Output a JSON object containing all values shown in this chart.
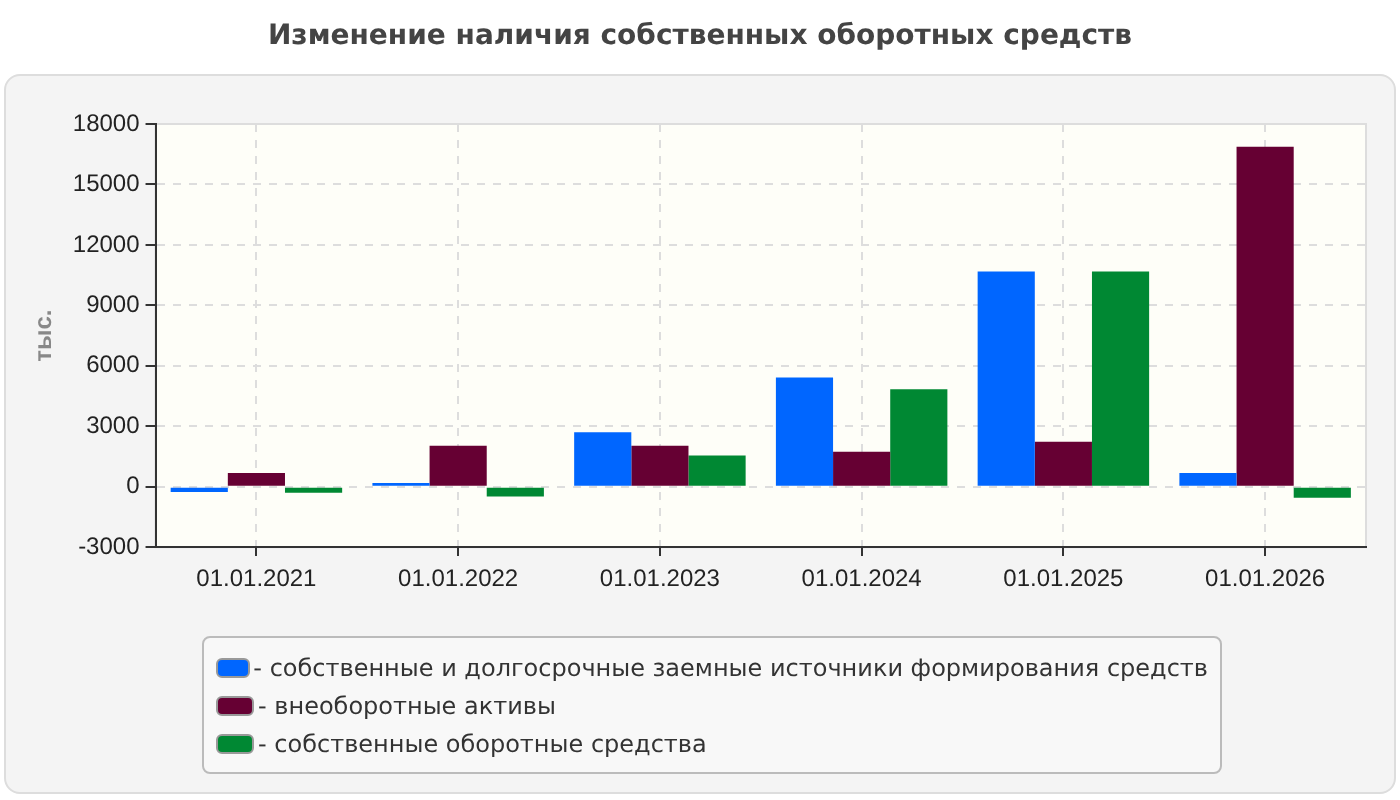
{
  "chart_data": {
    "type": "bar",
    "title": "Изменение наличия собственных оборотных средств",
    "ylabel": "тыс.",
    "categories": [
      "01.01.2021",
      "01.01.2022",
      "01.01.2023",
      "01.01.2024",
      "01.01.2025",
      "01.01.2026"
    ],
    "series": [
      {
        "name": "- собственные и долгосрочные заемные источники формирования средств",
        "color": "#0066ff",
        "values": [
          -260,
          190,
          2710,
          5420,
          10680,
          680
        ]
      },
      {
        "name": "- внеоборотные активы",
        "color": "#660033",
        "values": [
          680,
          2030,
          2030,
          1740,
          2230,
          16870
        ]
      },
      {
        "name": "- собственные оборотные средства",
        "color": "#008833",
        "values": [
          -300,
          -480,
          1550,
          4840,
          10680,
          -550
        ]
      }
    ],
    "ylim": [
      -3000,
      18000
    ],
    "yticks": [
      -3000,
      0,
      3000,
      6000,
      9000,
      12000,
      15000,
      18000
    ],
    "grid": true,
    "legend": "bottom"
  }
}
